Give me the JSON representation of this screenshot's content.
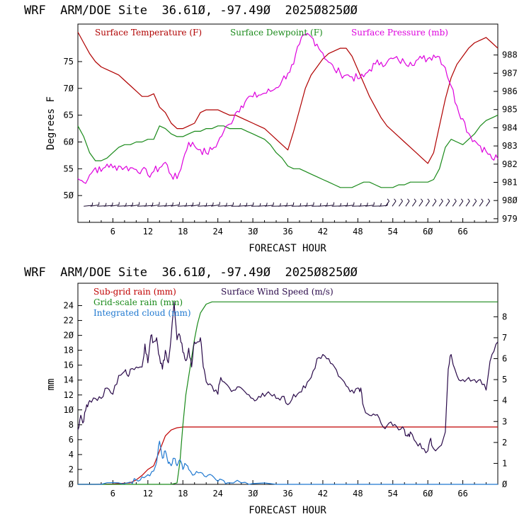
{
  "colors": {
    "temperature": "#b00000",
    "dewpoint": "#1a8a1a",
    "pressure": "#dd00dd",
    "subgrid_rain": "#c00000",
    "gridscale_rain": "#1a8a1a",
    "cloud": "#1f78d0",
    "wind": "#2a0a4a",
    "barbs": "#1a0a30"
  },
  "chart_data": [
    {
      "type": "line",
      "title": "WRF  ARM/DOE Site  36.61Ø, -97.49Ø  2025Ø825ØØ",
      "xlabel": "FORECAST HOUR",
      "ylabel": "Degrees F",
      "xlim": [
        0,
        72
      ],
      "ylim": [
        45,
        82
      ],
      "y2lim": [
        978.8,
        989.7
      ],
      "x_tick_labels": [
        "6",
        "12",
        "18",
        "24",
        "3Ø",
        "36",
        "42",
        "48",
        "54",
        "6Ø",
        "66"
      ],
      "y_tick_labels": [
        "5Ø",
        "55",
        "6Ø",
        "65",
        "7Ø",
        "75"
      ],
      "y2_tick_labels": [
        "979",
        "98Ø",
        "981",
        "982",
        "983",
        "984",
        "985",
        "986",
        "987",
        "988"
      ],
      "grid": false,
      "legend_position": "top",
      "wind_barbs_row": "bottom, y ≈ 48 °F",
      "series": [
        {
          "name": "Surface Temperature (F)",
          "axis": "left",
          "x": [
            0,
            1,
            2,
            3,
            4,
            5,
            6,
            7,
            8,
            9,
            10,
            11,
            12,
            13,
            14,
            15,
            16,
            17,
            18,
            19,
            20,
            21,
            22,
            23,
            24,
            25,
            26,
            27,
            28,
            29,
            30,
            31,
            32,
            33,
            34,
            35,
            36,
            37,
            38,
            39,
            40,
            41,
            42,
            43,
            44,
            45,
            46,
            47,
            48,
            49,
            50,
            51,
            52,
            53,
            54,
            55,
            56,
            57,
            58,
            59,
            60,
            61,
            62,
            63,
            64,
            65,
            66,
            67,
            68,
            69,
            70,
            71,
            72
          ],
          "values": [
            80.5,
            78.5,
            76.5,
            75,
            74,
            73.5,
            73,
            72.5,
            71.5,
            70.5,
            69.5,
            68.5,
            68.5,
            69,
            66.5,
            65.5,
            63.5,
            62.5,
            62.5,
            63,
            63.5,
            65.5,
            66,
            66,
            66,
            65.5,
            65,
            65,
            64.5,
            64,
            63.5,
            63,
            62.5,
            61.5,
            60.5,
            59.5,
            58.5,
            62,
            66,
            70,
            72.5,
            74,
            75.5,
            76.5,
            77,
            77.5,
            77.5,
            76,
            73.5,
            71,
            68.5,
            66.5,
            64.5,
            63,
            62,
            61,
            60,
            59,
            58,
            57,
            56,
            58,
            63,
            68,
            72,
            74.5,
            76,
            77.5,
            78.5,
            79,
            79.5,
            78.5,
            77.5
          ]
        },
        {
          "name": "Surface Dewpoint (F)",
          "axis": "left",
          "x": [
            0,
            1,
            2,
            3,
            4,
            5,
            6,
            7,
            8,
            9,
            10,
            11,
            12,
            13,
            14,
            15,
            16,
            17,
            18,
            19,
            20,
            21,
            22,
            23,
            24,
            25,
            26,
            27,
            28,
            29,
            30,
            31,
            32,
            33,
            34,
            35,
            36,
            37,
            38,
            39,
            40,
            41,
            42,
            43,
            44,
            45,
            46,
            47,
            48,
            49,
            50,
            51,
            52,
            53,
            54,
            55,
            56,
            57,
            58,
            59,
            60,
            61,
            62,
            63,
            64,
            65,
            66,
            67,
            68,
            69,
            70,
            71,
            72
          ],
          "values": [
            63,
            61,
            58,
            56.5,
            56.5,
            57,
            58,
            59,
            59.5,
            59.5,
            60,
            60,
            60.5,
            60.5,
            63,
            62.5,
            61.5,
            61,
            61,
            61.5,
            62,
            62,
            62.5,
            62.5,
            63,
            63,
            62.5,
            62.5,
            62.5,
            62,
            61.5,
            61,
            60.5,
            59.5,
            58,
            57,
            55.5,
            55,
            55,
            54.5,
            54,
            53.5,
            53,
            52.5,
            52,
            51.5,
            51.5,
            51.5,
            52,
            52.5,
            52.5,
            52,
            51.5,
            51.5,
            51.5,
            52,
            52,
            52.5,
            52.5,
            52.5,
            52.5,
            53,
            55,
            59,
            60.5,
            60,
            59.5,
            60.5,
            61.5,
            63,
            64,
            64.5,
            65
          ]
        },
        {
          "name": "Surface Pressure (mb)",
          "axis": "right",
          "x": [
            0,
            1,
            2,
            3,
            4,
            5,
            6,
            7,
            8,
            9,
            10,
            11,
            12,
            13,
            14,
            15,
            16,
            17,
            18,
            19,
            20,
            21,
            22,
            23,
            24,
            25,
            26,
            27,
            28,
            29,
            30,
            31,
            32,
            33,
            34,
            35,
            36,
            37,
            38,
            39,
            40,
            41,
            42,
            43,
            44,
            45,
            46,
            47,
            48,
            49,
            50,
            51,
            52,
            53,
            54,
            55,
            56,
            57,
            58,
            59,
            60,
            61,
            62,
            63,
            64,
            65,
            66,
            67,
            68,
            69,
            70,
            71,
            72
          ],
          "values": [
            981.2,
            981,
            981.4,
            981.8,
            981.6,
            982,
            981.8,
            981.9,
            981.8,
            981.8,
            981.7,
            981.7,
            981.4,
            981.6,
            981.8,
            982.1,
            981.4,
            981.2,
            982.2,
            983.2,
            983,
            982.8,
            982.6,
            982.8,
            983.2,
            983.8,
            984.2,
            984.8,
            985.2,
            985.6,
            985.7,
            985.8,
            985.9,
            986,
            986.2,
            986.6,
            987,
            987.5,
            988.6,
            989.1,
            989,
            988.6,
            988.1,
            987.6,
            987.2,
            987,
            986.9,
            986.8,
            986.7,
            986.8,
            987.2,
            987.5,
            987.6,
            987.6,
            987.8,
            987.7,
            987.6,
            987.6,
            987.7,
            987.8,
            987.8,
            988,
            987.9,
            987.3,
            986.3,
            985.2,
            984.5,
            983.7,
            983.3,
            983,
            982.7,
            982.3,
            982.3
          ]
        }
      ]
    },
    {
      "type": "line",
      "title": "WRF  ARM/DOE Site  36.61Ø, -97.49Ø  2025Ø825ØØ",
      "xlabel": "FORECAST HOUR",
      "ylabel": "mm",
      "xlim": [
        0,
        72
      ],
      "ylim": [
        0,
        27
      ],
      "y2lim": [
        0,
        9.6
      ],
      "x_tick_labels": [
        "6",
        "12",
        "18",
        "24",
        "3Ø",
        "36",
        "42",
        "48",
        "54",
        "6Ø",
        "66"
      ],
      "y_tick_labels": [
        "Ø",
        "2",
        "4",
        "6",
        "8",
        "1Ø",
        "12",
        "14",
        "16",
        "18",
        "2Ø",
        "22",
        "24"
      ],
      "y2_tick_labels": [
        "Ø",
        "1",
        "2",
        "3",
        "4",
        "5",
        "6",
        "7",
        "8"
      ],
      "grid": false,
      "legend_position": "top-left",
      "series": [
        {
          "name": "Sub-grid rain (mm)",
          "axis": "left",
          "x": [
            0,
            3,
            6,
            9,
            10,
            11,
            12,
            13,
            14,
            15,
            16,
            17,
            18,
            72
          ],
          "values": [
            0,
            0,
            0.05,
            0.2,
            0.6,
            1.2,
            2,
            2.5,
            4.5,
            6.5,
            7.3,
            7.6,
            7.7,
            7.7
          ]
        },
        {
          "name": "Grid-scale rain (mm)",
          "axis": "left",
          "x": [
            0,
            16,
            17,
            17.5,
            18,
            18.5,
            19,
            19.5,
            20,
            20.5,
            21,
            22,
            23,
            24,
            72
          ],
          "values": [
            0,
            0,
            0.2,
            3,
            8,
            12,
            14.5,
            17,
            19.5,
            21.5,
            23,
            24.2,
            24.5,
            24.5,
            24.5
          ]
        },
        {
          "name": "Integrated cloud (mm)",
          "axis": "left",
          "x": [
            0,
            4,
            7,
            9,
            10,
            11,
            12,
            13,
            13.5,
            14,
            14.5,
            15,
            15.5,
            16,
            16.5,
            17,
            17.5,
            18,
            18.5,
            19,
            20,
            21,
            22,
            23,
            24,
            25,
            26,
            28,
            30,
            36,
            72
          ],
          "values": [
            0,
            0,
            0.2,
            0.3,
            0.6,
            1,
            1.3,
            1.8,
            3,
            5.8,
            3.5,
            4.5,
            2.8,
            2.5,
            3.5,
            2.5,
            3.3,
            2,
            2.7,
            2,
            1.3,
            1.6,
            1,
            1.2,
            0.4,
            0.5,
            0.2,
            0.2,
            0.1,
            0,
            0
          ]
        },
        {
          "name": "Surface Wind Speed (m/s)",
          "axis": "right",
          "x": [
            0,
            0.5,
            1,
            1.5,
            2,
            3,
            4,
            5,
            6,
            7,
            8,
            8.5,
            9,
            10,
            11,
            11.5,
            12,
            12.5,
            13,
            13.5,
            14,
            14.5,
            15,
            15.5,
            16,
            16.5,
            17,
            17.5,
            18,
            18.5,
            19,
            19.5,
            20,
            20.5,
            21,
            21.5,
            22,
            23,
            24,
            24.5,
            25,
            26,
            27,
            28,
            29,
            30,
            31,
            32,
            33,
            34,
            35,
            36,
            37,
            38,
            39,
            40,
            41,
            42,
            43,
            44,
            45,
            46,
            47,
            48,
            48.5,
            49,
            50,
            51,
            52,
            53,
            54,
            55,
            56,
            56.5,
            57,
            58,
            59,
            60,
            60.5,
            61,
            62,
            63,
            63.5,
            64,
            65,
            66,
            67,
            68,
            69,
            70,
            70.5,
            71,
            72
          ],
          "values": [
            2.6,
            3.3,
            3,
            3.8,
            4,
            4.1,
            4.1,
            4.6,
            4.3,
            5.2,
            5.4,
            5.2,
            5.5,
            5.6,
            5.6,
            6.7,
            5.8,
            7.1,
            6.8,
            7,
            6.1,
            5.5,
            6.4,
            5.8,
            7.1,
            8.7,
            6.9,
            7.1,
            6.3,
            5.9,
            6.5,
            5.6,
            6.8,
            6.8,
            7,
            5.6,
            4.9,
            4.7,
            4.3,
            5.1,
            4.9,
            4.6,
            4.5,
            4.6,
            4.3,
            4.1,
            4.2,
            4.2,
            4.3,
            4.1,
            4.2,
            3.8,
            4.3,
            4.4,
            4.6,
            5.1,
            6,
            6.2,
            6,
            5.6,
            5.1,
            4.7,
            4.5,
            4.6,
            4.6,
            3.7,
            3.3,
            3.3,
            2.9,
            2.8,
            2.8,
            2.6,
            2.6,
            2.3,
            2.5,
            2,
            1.7,
            1.6,
            2.2,
            1.7,
            1.8,
            2.5,
            5.5,
            6.2,
            5.2,
            5,
            5.1,
            5,
            5,
            4.5,
            5.5,
            6.2,
            6.8
          ]
        }
      ]
    }
  ]
}
